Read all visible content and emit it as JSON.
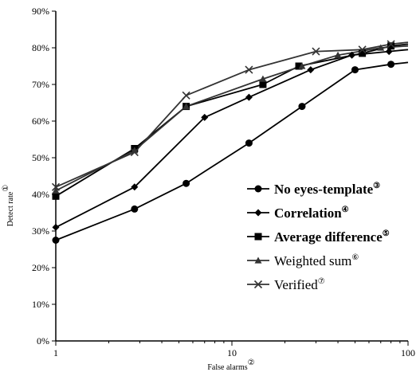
{
  "chart_data": {
    "type": "line",
    "title": "",
    "xlabel": "False alarms",
    "xlabel_mark": "②",
    "ylabel": "Detect rate",
    "ylabel_mark": "①",
    "xscale": "log",
    "xlim": [
      1,
      100
    ],
    "ylim": [
      0,
      90
    ],
    "xticks": [
      {
        "value": 1,
        "label": "1"
      },
      {
        "value": 10,
        "label": "10"
      },
      {
        "value": 100,
        "label": "100"
      }
    ],
    "yticks": [
      {
        "value": 0,
        "label": "0%"
      },
      {
        "value": 10,
        "label": "10%"
      },
      {
        "value": 20,
        "label": "20%"
      },
      {
        "value": 30,
        "label": "30%"
      },
      {
        "value": 40,
        "label": "40%"
      },
      {
        "value": 50,
        "label": "50%"
      },
      {
        "value": 60,
        "label": "60%"
      },
      {
        "value": 70,
        "label": "70%"
      },
      {
        "value": 80,
        "label": "80%"
      },
      {
        "value": 90,
        "label": "90%"
      }
    ],
    "grid": false,
    "legend_position": "center-right",
    "series": [
      {
        "name": "No eyes-template",
        "mark": "③",
        "bold": true,
        "marker": "circle",
        "color": "#000000",
        "x": [
          1,
          2.8,
          5.5,
          12.5,
          25,
          50,
          80,
          100
        ],
        "y": [
          27.5,
          36,
          43,
          54,
          64,
          74,
          75.5,
          76
        ]
      },
      {
        "name": "Correlation",
        "mark": "④",
        "bold": true,
        "marker": "diamond",
        "color": "#000000",
        "x": [
          1,
          2.8,
          7,
          12.5,
          28,
          48,
          78,
          100
        ],
        "y": [
          31,
          42,
          61,
          66.5,
          74,
          78,
          79,
          79.5
        ]
      },
      {
        "name": "Average difference",
        "mark": "⑤",
        "bold": true,
        "marker": "square",
        "color": "#000000",
        "x": [
          1,
          2.8,
          5.5,
          15,
          24,
          55,
          80,
          100
        ],
        "y": [
          39.5,
          52.5,
          64,
          70,
          75,
          78.5,
          80.5,
          81
        ]
      },
      {
        "name": "Weighted sum",
        "mark": "⑥",
        "bold": false,
        "marker": "triangle",
        "color": "#333333",
        "x": [
          1,
          2.8,
          5.5,
          15,
          25,
          40,
          70,
          100
        ],
        "y": [
          41,
          52,
          64,
          71.5,
          75,
          78,
          80,
          80.5
        ]
      },
      {
        "name": "Verified",
        "mark": "⑦",
        "bold": false,
        "marker": "x",
        "color": "#333333",
        "x": [
          1,
          2.8,
          5.5,
          12.5,
          30,
          55,
          80,
          100
        ],
        "y": [
          42,
          51.5,
          67,
          74,
          79,
          79.5,
          81,
          81.5
        ]
      }
    ]
  }
}
